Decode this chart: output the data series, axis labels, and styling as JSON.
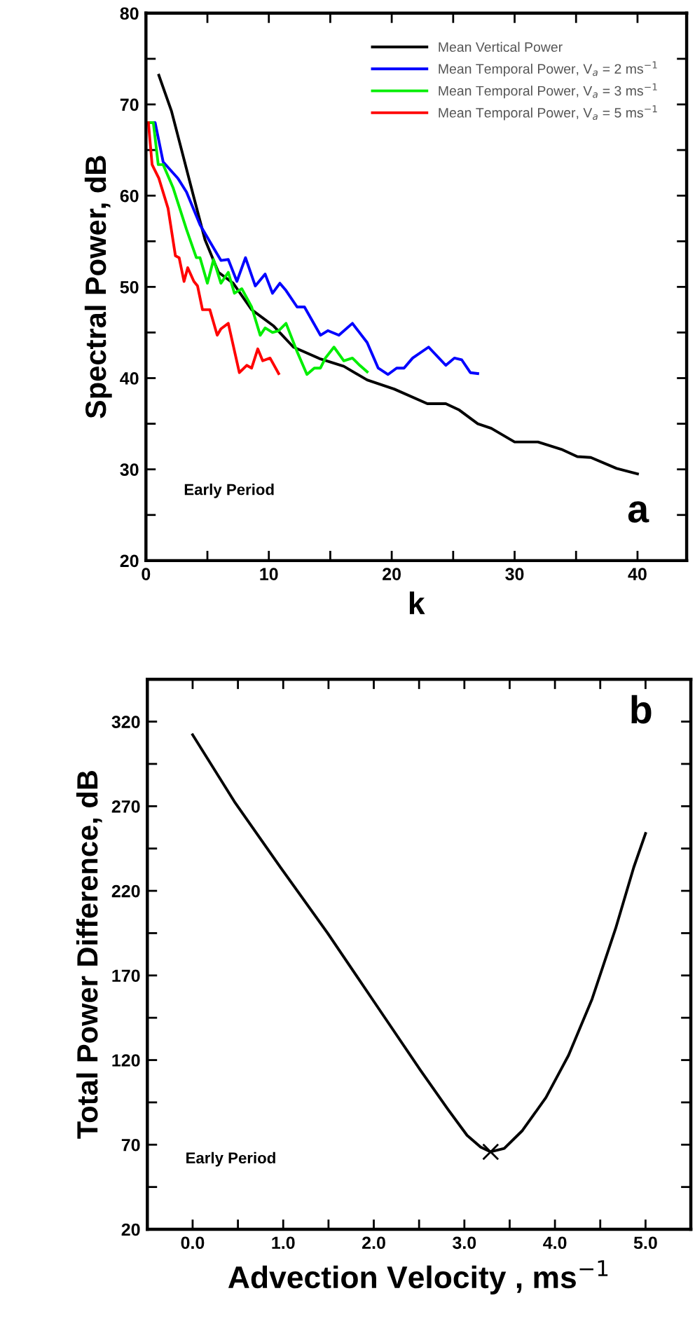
{
  "chart_data": [
    {
      "type": "line",
      "xlabel": "k",
      "ylabel": "Spectral Power, dB",
      "xlim": [
        0,
        44
      ],
      "ylim": [
        20,
        80
      ],
      "xticks": [
        0,
        {
          "value": 5,
          "label": null
        },
        10,
        {
          "value": 15,
          "label": null
        },
        20,
        {
          "value": 25,
          "label": null
        },
        30,
        {
          "value": 35,
          "label": null
        },
        40
      ],
      "yticks": [
        20,
        {
          "value": 25,
          "label": null
        },
        30,
        {
          "value": 35,
          "label": null
        },
        40,
        {
          "value": 45,
          "label": null
        },
        50,
        {
          "value": 55,
          "label": null
        },
        60,
        {
          "value": 65,
          "label": null
        },
        70,
        {
          "value": 75,
          "label": null
        },
        80
      ],
      "legend": "top right",
      "grid": false,
      "marker": "none",
      "line_style": "solid",
      "annotations": [
        "Early Period",
        "a"
      ],
      "series": [
        {
          "name": "Mean Vertical Power",
          "color": "#000000",
          "x": [
            1.05,
            2.07,
            2.9,
            3.9,
            4.8,
            5.9,
            7.1,
            8.6,
            10.4,
            12,
            14.2,
            16.1,
            18,
            20.2,
            22.9,
            24.4,
            25.5,
            27,
            28.1,
            30,
            31.9,
            33.8,
            35.1,
            36.2,
            38.3,
            40
          ],
          "values": [
            73.2,
            69.3,
            65,
            59.8,
            55.2,
            51.6,
            50.4,
            47.5,
            45.7,
            43.4,
            42.1,
            41.3,
            39.8,
            38.8,
            37.2,
            37.2,
            36.5,
            35,
            34.5,
            33,
            33,
            32.2,
            31.4,
            31.3,
            30.1,
            29.5
          ]
        },
        {
          "name": "Mean Temporal Power, V$_{a}$ = 2 ms$^{−1}$",
          "color": "#0000ff",
          "x": [
            0.3,
            0.75,
            1.4,
            2.6,
            3.3,
            4.4,
            5.4,
            6.1,
            6.7,
            7.4,
            8.1,
            8.9,
            9.7,
            10.3,
            10.9,
            11.4,
            12.3,
            12.9,
            14.2,
            14.8,
            15.7,
            16.8,
            18,
            18.9,
            19.7,
            20.4,
            21,
            21.7,
            23,
            24.4,
            25.1,
            25.7,
            26.4,
            27
          ],
          "values": [
            68,
            68,
            63.7,
            61.9,
            60.4,
            56.8,
            54.5,
            52.9,
            53,
            50.6,
            53.2,
            50.1,
            51.4,
            49.3,
            50.4,
            49.6,
            47.8,
            47.8,
            44.7,
            45.2,
            44.7,
            46,
            43.9,
            41.1,
            40.4,
            41.1,
            41.1,
            42.2,
            43.4,
            41.4,
            42.2,
            42,
            40.6,
            40.5
          ]
        },
        {
          "name": "Mean Temporal Power, V$_{a}$ = 3 ms$^{−1}$",
          "color": "#00ee00",
          "x": [
            0.2,
            0.6,
            1,
            1.4,
            2.2,
            3.3,
            4.1,
            4.4,
            5,
            5.5,
            6.1,
            6.7,
            7.2,
            7.8,
            8.6,
            9.3,
            9.7,
            10.3,
            10.8,
            11.4,
            12.3,
            13.1,
            13.7,
            14.2,
            14.6,
            15.3,
            16.1,
            16.8,
            17.4,
            18
          ],
          "values": [
            68,
            68,
            63.4,
            63.4,
            60.9,
            56.3,
            53.2,
            53.2,
            50.4,
            53,
            50.4,
            51.6,
            49.3,
            49.8,
            47.8,
            44.7,
            45.5,
            45,
            45.2,
            46,
            42.9,
            40.4,
            41.1,
            41.1,
            42.2,
            43.4,
            41.9,
            42.2,
            41.4,
            40.7
          ]
        },
        {
          "name": "Mean Temporal Power, V$_{a}$ = 5 ms$^{−1}$",
          "color": "#ff0000",
          "x": [
            0.2,
            0.5,
            1.05,
            1.8,
            2.4,
            2.7,
            3.1,
            3.4,
            3.9,
            4.2,
            4.6,
            5.2,
            5.8,
            6.1,
            6.7,
            7.6,
            8.2,
            8.6,
            9.1,
            9.5,
            10.1,
            10.8
          ],
          "values": [
            68,
            63.4,
            61.9,
            58.6,
            53.4,
            53.2,
            50.6,
            52.1,
            50.6,
            50.1,
            47.5,
            47.5,
            44.7,
            45.4,
            46,
            40.6,
            41.4,
            41.1,
            43.2,
            41.9,
            42.2,
            40.5
          ]
        }
      ]
    },
    {
      "type": "line",
      "xlabel": "Advection Velocity , ms$^{−1}$",
      "ylabel": "Total Power Difference, dB",
      "xlim": [
        -0.5,
        5.5
      ],
      "ylim": [
        20,
        345
      ],
      "xticks": [
        {
          "value": 0,
          "label": "0.0"
        },
        {
          "value": 0.5,
          "label": null
        },
        {
          "value": 1,
          "label": "1.0"
        },
        {
          "value": 1.5,
          "label": null
        },
        {
          "value": 2,
          "label": "2.0"
        },
        {
          "value": 2.5,
          "label": null
        },
        {
          "value": 3,
          "label": "3.0"
        },
        {
          "value": 3.5,
          "label": null
        },
        {
          "value": 4,
          "label": "4.0"
        },
        {
          "value": 4.5,
          "label": null
        },
        {
          "value": 5,
          "label": "5.0"
        }
      ],
      "yticks": [
        20,
        {
          "value": 45,
          "label": null
        },
        70,
        {
          "value": 95,
          "label": null
        },
        120,
        {
          "value": 145,
          "label": null
        },
        170,
        {
          "value": 195,
          "label": null
        },
        220,
        {
          "value": 245,
          "label": null
        },
        270,
        {
          "value": 295,
          "label": null
        },
        320
      ],
      "grid": false,
      "legend": false,
      "annotations": [
        "Early Period",
        "b"
      ],
      "series": [
        {
          "color": "#000000",
          "marker": "none",
          "x": [
            0,
            0.46,
            0.97,
            1.49,
            2.0,
            2.51,
            2.82,
            3.03,
            3.18,
            3.29,
            3.44,
            3.64,
            3.9,
            4.15,
            4.41,
            4.67,
            4.87,
            5.0
          ],
          "values": [
            312.2,
            272.8,
            233.9,
            195,
            154.7,
            114.4,
            90.8,
            75.5,
            68.6,
            65.8,
            67.8,
            78.3,
            97.8,
            122.8,
            156.1,
            197.8,
            233.9,
            253.9
          ]
        },
        {
          "type": "scatter",
          "color": "#000000",
          "marker": "cross",
          "x": [
            3.29
          ],
          "values": [
            65.8
          ]
        }
      ]
    }
  ]
}
